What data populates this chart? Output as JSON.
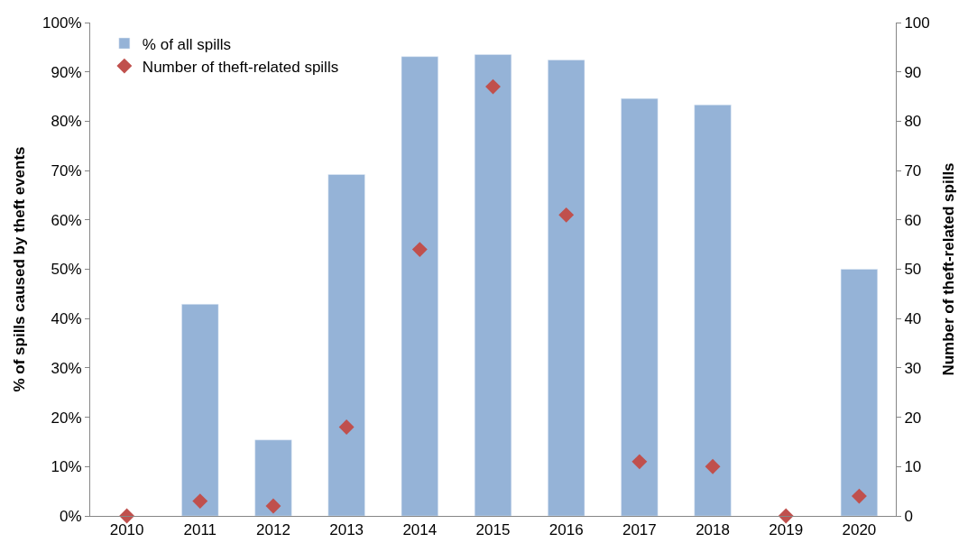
{
  "chart_data": {
    "type": "bar",
    "categories": [
      "2010",
      "2011",
      "2012",
      "2013",
      "2014",
      "2015",
      "2016",
      "2017",
      "2018",
      "2019",
      "2020"
    ],
    "ylabel": "% of spills caused by theft events",
    "y2label": "Number of theft-related spills",
    "series": [
      {
        "name": "% of all spills",
        "color": "#95b3d7",
        "values": [
          null,
          42.9,
          15.4,
          69.2,
          93.1,
          93.5,
          92.4,
          84.6,
          83.3,
          null,
          50
        ]
      },
      {
        "name": "Number of theft-related spills",
        "type": "scatter",
        "axis": "y2",
        "color": "#c0504d",
        "marker": "diamond",
        "values": [
          0,
          3,
          2,
          18,
          54,
          87,
          61,
          11,
          10,
          0,
          4
        ]
      }
    ],
    "ylim": [
      0,
      100
    ],
    "yticks": [
      {
        "value": 0,
        "label": "0%"
      },
      {
        "value": 10,
        "label": "10%"
      },
      {
        "value": 20,
        "label": "20%"
      },
      {
        "value": 30,
        "label": "30%"
      },
      {
        "value": 40,
        "label": "40%"
      },
      {
        "value": 50,
        "label": "50%"
      },
      {
        "value": 60,
        "label": "60%"
      },
      {
        "value": 70,
        "label": "70%"
      },
      {
        "value": 80,
        "label": "80%"
      },
      {
        "value": 90,
        "label": "90%"
      },
      {
        "value": 100,
        "label": "100%"
      }
    ],
    "y2lim": [
      0,
      100
    ],
    "y2ticks": [
      0,
      10,
      20,
      30,
      40,
      50,
      60,
      70,
      80,
      90,
      100
    ],
    "legend": "top left"
  }
}
